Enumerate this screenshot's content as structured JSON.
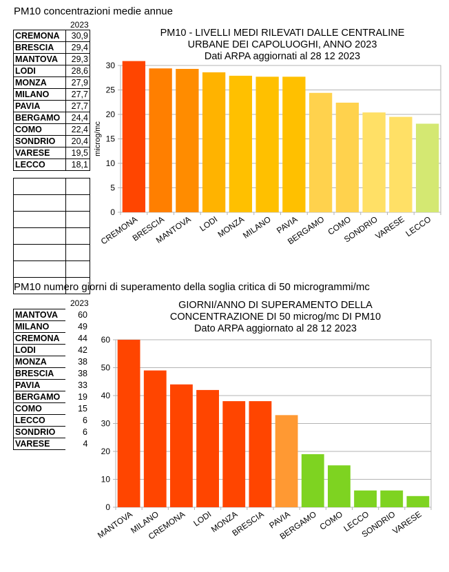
{
  "section1": {
    "heading": "PM10 concentrazioni medie  annue",
    "year": "2023",
    "rows": [
      {
        "city": "CREMONA",
        "value": "30,9"
      },
      {
        "city": "BRESCIA",
        "value": "29,4"
      },
      {
        "city": "MANTOVA",
        "value": "29,3"
      },
      {
        "city": "LODI",
        "value": "28,6"
      },
      {
        "city": "MONZA",
        "value": "27,9"
      },
      {
        "city": "MILANO",
        "value": "27,7"
      },
      {
        "city": "PAVIA",
        "value": "27,7"
      },
      {
        "city": "BERGAMO",
        "value": "24,4"
      },
      {
        "city": "COMO",
        "value": "22,4"
      },
      {
        "city": "SONDRIO",
        "value": "20,4"
      },
      {
        "city": "VARESE",
        "value": "19,5"
      },
      {
        "city": "LECCO",
        "value": "18,1"
      }
    ]
  },
  "section2": {
    "heading": "PM10 numero giorni di superamento della soglia  critica di 50 microgrammi/mc",
    "year": "2023",
    "rows": [
      {
        "city": "MANTOVA",
        "value": "60"
      },
      {
        "city": "MILANO",
        "value": "49"
      },
      {
        "city": "CREMONA",
        "value": "44"
      },
      {
        "city": "LODI",
        "value": "42"
      },
      {
        "city": "MONZA",
        "value": "38"
      },
      {
        "city": "BRESCIA",
        "value": "38"
      },
      {
        "city": "PAVIA",
        "value": "33"
      },
      {
        "city": "BERGAMO",
        "value": "19"
      },
      {
        "city": "COMO",
        "value": "15"
      },
      {
        "city": "LECCO",
        "value": "6"
      },
      {
        "city": "SONDRIO",
        "value": "6"
      },
      {
        "city": "VARESE",
        "value": "4"
      }
    ]
  },
  "chart_data": [
    {
      "type": "bar",
      "title_lines": [
        "PM10 - LIVELLI MEDI RILEVATI DALLE CENTRALINE",
        "URBANE DEI CAPOLUOGHI, ANNO 2023",
        "Dati ARPA aggiornati al 28 12 2023"
      ],
      "ylabel": "microg/mc",
      "xlabel": "",
      "ylim": [
        0,
        30
      ],
      "yticks": [
        "0",
        "5",
        "10",
        "15",
        "20",
        "25",
        "30"
      ],
      "categories": [
        "CREMONA",
        "BRESCIA",
        "MANTOVA",
        "LODI",
        "MONZA",
        "MILANO",
        "PAVIA",
        "BERGAMO",
        "COMO",
        "SONDRIO",
        "VARESE",
        "LECCO"
      ],
      "values": [
        30.9,
        29.4,
        29.3,
        28.6,
        27.9,
        27.7,
        27.7,
        24.4,
        22.4,
        20.4,
        19.5,
        18.1
      ],
      "colors": [
        "#ff4500",
        "#ff7f00",
        "#ff8c00",
        "#ffb300",
        "#ffc000",
        "#ffc000",
        "#ffc000",
        "#ffd24d",
        "#ffd24d",
        "#ffe066",
        "#ffe066",
        "#d4e872"
      ],
      "grid": true
    },
    {
      "type": "bar",
      "title_lines": [
        "GIORNI/ANNO DI SUPERAMENTO  DELLA",
        "CONCENTRAZIONE  DI  50 microg/mc DI  PM10",
        "Dato ARPA aggiornato al  28 12 2023"
      ],
      "ylabel": "",
      "xlabel": "",
      "ylim": [
        0,
        60
      ],
      "yticks": [
        "0",
        "10",
        "20",
        "30",
        "40",
        "50",
        "60"
      ],
      "categories": [
        "MANTOVA",
        "MILANO",
        "CREMONA",
        "LODI",
        "MONZA",
        "BRESCIA",
        "PAVIA",
        "BERGAMO",
        "COMO",
        "LECCO",
        "SONDRIO",
        "VARESE"
      ],
      "values": [
        60,
        49,
        44,
        42,
        38,
        38,
        33,
        19,
        15,
        6,
        6,
        4
      ],
      "colors": [
        "#ff4500",
        "#ff4500",
        "#ff4500",
        "#ff4500",
        "#ff4500",
        "#ff4500",
        "#ff9933",
        "#7ed321",
        "#7ed321",
        "#7ed321",
        "#7ed321",
        "#7ed321"
      ],
      "grid": true
    }
  ]
}
